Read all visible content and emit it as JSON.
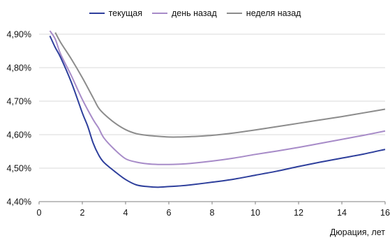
{
  "chart_data": {
    "type": "line",
    "title": "",
    "xlabel": "Дюрация, лет",
    "ylabel": "",
    "xlim": [
      0,
      16
    ],
    "ylim": [
      4.4,
      4.9
    ],
    "x_ticks": [
      0,
      2,
      4,
      6,
      8,
      10,
      12,
      14,
      16
    ],
    "x_tick_labels": [
      "0",
      "2",
      "4",
      "6",
      "8",
      "10",
      "12",
      "14",
      "16"
    ],
    "y_ticks": [
      4.4,
      4.5,
      4.6,
      4.7,
      4.8,
      4.9
    ],
    "y_tick_labels": [
      "4,40%",
      "4,50%",
      "4,60%",
      "4,70%",
      "4,80%",
      "4,90%"
    ],
    "grid": "horizontal",
    "legend_position": "top-center",
    "series": [
      {
        "name": "текущая",
        "color": "#2E3F9C",
        "x": [
          0.5,
          0.75,
          1,
          1.5,
          2,
          2.25,
          2.5,
          2.75,
          3,
          3.5,
          4,
          4.5,
          5,
          5.5,
          6,
          6.5,
          7,
          8,
          9,
          10,
          11,
          12,
          13,
          14,
          15,
          16
        ],
        "y": [
          4.895,
          4.86,
          4.83,
          4.755,
          4.665,
          4.625,
          4.575,
          4.54,
          4.517,
          4.49,
          4.466,
          4.45,
          4.445,
          4.443,
          4.445,
          4.447,
          4.45,
          4.458,
          4.467,
          4.479,
          4.491,
          4.505,
          4.518,
          4.53,
          4.542,
          4.556
        ]
      },
      {
        "name": "день назад",
        "color": "#A78BC8",
        "x": [
          0.5,
          0.75,
          1,
          1.5,
          2,
          2.5,
          2.75,
          3,
          3.5,
          4,
          4.5,
          5,
          5.5,
          6,
          6.5,
          7,
          8,
          9,
          10,
          11,
          12,
          13,
          14,
          15,
          16
        ],
        "y": [
          4.91,
          4.885,
          4.84,
          4.775,
          4.705,
          4.645,
          4.62,
          4.59,
          4.555,
          4.528,
          4.518,
          4.513,
          4.511,
          4.511,
          4.512,
          4.514,
          4.521,
          4.53,
          4.541,
          4.551,
          4.562,
          4.574,
          4.586,
          4.598,
          4.611
        ]
      },
      {
        "name": "неделя назад",
        "color": "#8C8C8C",
        "x": [
          0.75,
          1,
          1.5,
          2,
          2.5,
          2.75,
          3,
          3.5,
          4,
          4.5,
          5,
          5.5,
          6,
          6.5,
          7,
          8,
          9,
          10,
          11,
          12,
          13,
          14,
          15,
          16
        ],
        "y": [
          4.905,
          4.875,
          4.825,
          4.77,
          4.71,
          4.68,
          4.662,
          4.635,
          4.615,
          4.603,
          4.598,
          4.595,
          4.593,
          4.593,
          4.594,
          4.598,
          4.605,
          4.614,
          4.624,
          4.634,
          4.644,
          4.654,
          4.665,
          4.676
        ]
      }
    ]
  }
}
